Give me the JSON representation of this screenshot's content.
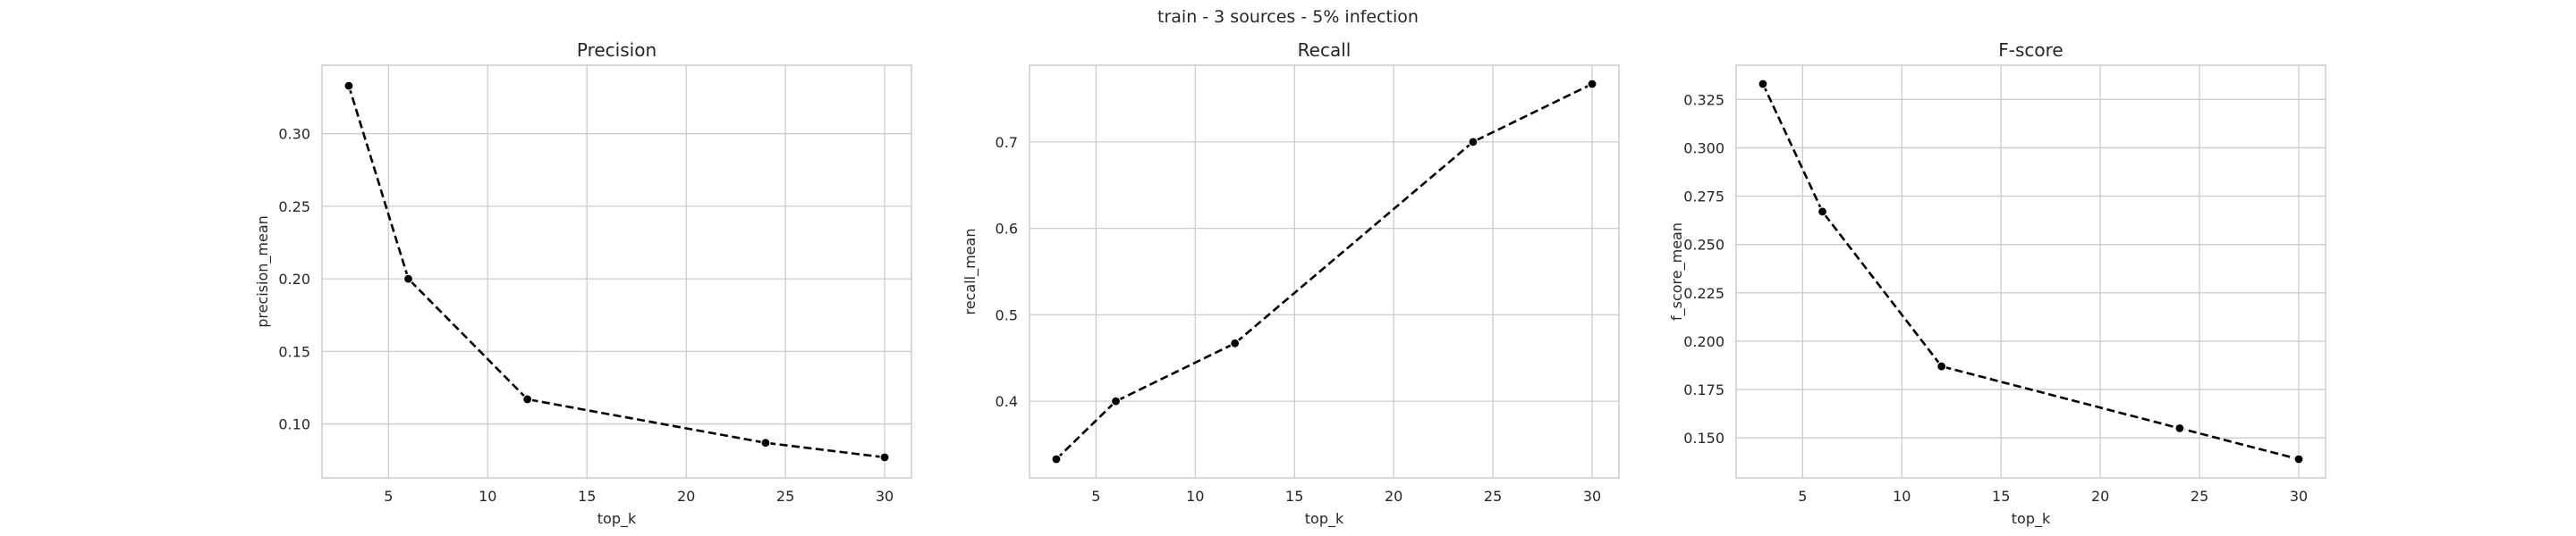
{
  "figure": {
    "suptitle": "train - 3 sources - 5% infection"
  },
  "style": {
    "grid_color": "#cccccc",
    "frame_color": "#cccccc",
    "line_color": "#000000",
    "marker_color": "#000000",
    "background": "#ffffff"
  },
  "chart_data": [
    {
      "type": "line",
      "title": "Precision",
      "xlabel": "top_k",
      "ylabel": "precision_mean",
      "x": [
        3,
        6,
        12,
        24,
        30
      ],
      "y": [
        0.333,
        0.2,
        0.117,
        0.087,
        0.077
      ],
      "xlim": [
        1.65,
        31.35
      ],
      "ylim": [
        0.0628,
        0.3472
      ],
      "xticks": [
        5,
        10,
        15,
        20,
        25,
        30
      ],
      "yticks": [
        0.1,
        0.15,
        0.2,
        0.25,
        0.3
      ],
      "ytick_labels": [
        "0.10",
        "0.15",
        "0.20",
        "0.25",
        "0.30"
      ],
      "line_style": "dashed",
      "marker": "circle",
      "grid": true
    },
    {
      "type": "line",
      "title": "Recall",
      "xlabel": "top_k",
      "ylabel": "recall_mean",
      "x": [
        3,
        6,
        12,
        24,
        30
      ],
      "y": [
        0.333,
        0.4,
        0.467,
        0.7,
        0.767
      ],
      "xlim": [
        1.65,
        31.35
      ],
      "ylim": [
        0.3113,
        0.7887
      ],
      "xticks": [
        5,
        10,
        15,
        20,
        25,
        30
      ],
      "yticks": [
        0.4,
        0.5,
        0.6,
        0.7
      ],
      "ytick_labels": [
        "0.4",
        "0.5",
        "0.6",
        "0.7"
      ],
      "line_style": "dashed",
      "marker": "circle",
      "grid": true
    },
    {
      "type": "line",
      "title": "F-score",
      "xlabel": "top_k",
      "ylabel": "f_score_mean",
      "x": [
        3,
        6,
        12,
        24,
        30
      ],
      "y": [
        0.333,
        0.267,
        0.187,
        0.155,
        0.139
      ],
      "xlim": [
        1.65,
        31.35
      ],
      "ylim": [
        0.1293,
        0.3427
      ],
      "xticks": [
        5,
        10,
        15,
        20,
        25,
        30
      ],
      "yticks": [
        0.15,
        0.175,
        0.2,
        0.225,
        0.25,
        0.275,
        0.3,
        0.325
      ],
      "ytick_labels": [
        "0.150",
        "0.175",
        "0.200",
        "0.225",
        "0.250",
        "0.275",
        "0.300",
        "0.325"
      ],
      "line_style": "dashed",
      "marker": "circle",
      "grid": true
    }
  ]
}
